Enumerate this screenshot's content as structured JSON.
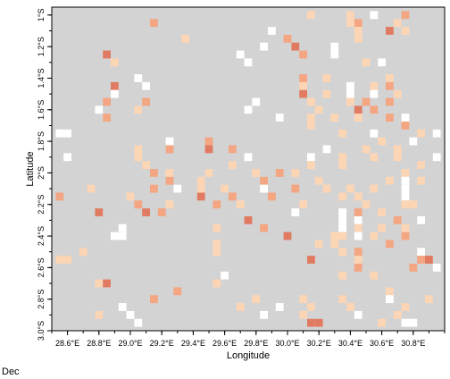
{
  "chart_data": {
    "type": "heatmap",
    "title": "",
    "xlabel": "Longitude",
    "ylabel": "Latitude",
    "annotation": "Dec",
    "xlim": [
      28.5,
      31.0
    ],
    "ylim": [
      -3.0,
      -0.95
    ],
    "x_ticks": [
      {
        "value": 28.6,
        "label": "28.6°E"
      },
      {
        "value": 28.8,
        "label": "28.8°E"
      },
      {
        "value": 29.0,
        "label": "29.0°E"
      },
      {
        "value": 29.2,
        "label": "29.2°E"
      },
      {
        "value": 29.4,
        "label": "29.4°E"
      },
      {
        "value": 29.6,
        "label": "29.6°E"
      },
      {
        "value": 29.8,
        "label": "29.8°E"
      },
      {
        "value": 30.0,
        "label": "30.0°E"
      },
      {
        "value": 30.2,
        "label": "30.2°E"
      },
      {
        "value": 30.4,
        "label": "30.4°E"
      },
      {
        "value": 30.6,
        "label": "30.6°E"
      },
      {
        "value": 30.8,
        "label": "30.8°E"
      }
    ],
    "y_ticks": [
      {
        "value": -1.0,
        "label": "1°S"
      },
      {
        "value": -1.2,
        "label": "1.2°S"
      },
      {
        "value": -1.4,
        "label": "1.4°S"
      },
      {
        "value": -1.6,
        "label": "1.6°S"
      },
      {
        "value": -1.8,
        "label": "1.8°S"
      },
      {
        "value": -2.0,
        "label": "2°S"
      },
      {
        "value": -2.2,
        "label": "2.2°S"
      },
      {
        "value": -2.4,
        "label": "2.4°S"
      },
      {
        "value": -2.6,
        "label": "2.6°S"
      },
      {
        "value": -2.8,
        "label": "2.8°S"
      },
      {
        "value": -3.0,
        "label": "3.0°S"
      }
    ],
    "grid": false,
    "legend": "none",
    "cell_size_deg": 0.05,
    "colors": {
      "background": "#d3d3d3",
      "level_1": "#ffffff",
      "level_2": "#fcd5b5",
      "level_3": "#f4a582",
      "level_4": "#e07b62"
    },
    "cells": [
      {
        "lon": 30.55,
        "lat": -1.0,
        "level": 1
      },
      {
        "lon": 30.4,
        "lat": -1.0,
        "level": 2
      },
      {
        "lon": 30.15,
        "lat": -1.0,
        "level": 2
      },
      {
        "lon": 30.75,
        "lat": -1.0,
        "level": 3
      },
      {
        "lon": 29.15,
        "lat": -1.05,
        "level": 3
      },
      {
        "lon": 30.45,
        "lat": -1.05,
        "level": 3
      },
      {
        "lon": 30.4,
        "lat": -1.05,
        "level": 2
      },
      {
        "lon": 30.7,
        "lat": -1.05,
        "level": 2
      },
      {
        "lon": 30.45,
        "lat": -1.1,
        "level": 2
      },
      {
        "lon": 30.65,
        "lat": -1.1,
        "level": 4
      },
      {
        "lon": 30.75,
        "lat": -1.1,
        "level": 2
      },
      {
        "lon": 29.9,
        "lat": -1.1,
        "level": 1
      },
      {
        "lon": 30.0,
        "lat": -1.15,
        "level": 3
      },
      {
        "lon": 30.45,
        "lat": -1.15,
        "level": 2
      },
      {
        "lon": 29.35,
        "lat": -1.15,
        "level": 2
      },
      {
        "lon": 30.05,
        "lat": -1.2,
        "level": 4
      },
      {
        "lon": 29.85,
        "lat": -1.2,
        "level": 1
      },
      {
        "lon": 30.3,
        "lat": -1.2,
        "level": 1
      },
      {
        "lon": 28.85,
        "lat": -1.25,
        "level": 4
      },
      {
        "lon": 29.7,
        "lat": -1.25,
        "level": 1
      },
      {
        "lon": 30.1,
        "lat": -1.25,
        "level": 3
      },
      {
        "lon": 30.3,
        "lat": -1.25,
        "level": 1
      },
      {
        "lon": 28.9,
        "lat": -1.3,
        "level": 2
      },
      {
        "lon": 29.75,
        "lat": -1.3,
        "level": 1
      },
      {
        "lon": 30.6,
        "lat": -1.3,
        "level": 1
      },
      {
        "lon": 30.5,
        "lat": -1.3,
        "level": 2
      },
      {
        "lon": 29.05,
        "lat": -1.4,
        "level": 1
      },
      {
        "lon": 30.1,
        "lat": -1.4,
        "level": 3
      },
      {
        "lon": 30.25,
        "lat": -1.4,
        "level": 2
      },
      {
        "lon": 30.65,
        "lat": -1.4,
        "level": 2
      },
      {
        "lon": 28.9,
        "lat": -1.45,
        "level": 4
      },
      {
        "lon": 29.1,
        "lat": -1.45,
        "level": 1
      },
      {
        "lon": 30.1,
        "lat": -1.45,
        "level": 2
      },
      {
        "lon": 30.4,
        "lat": -1.45,
        "level": 1
      },
      {
        "lon": 30.55,
        "lat": -1.45,
        "level": 2
      },
      {
        "lon": 30.65,
        "lat": -1.45,
        "level": 3
      },
      {
        "lon": 28.9,
        "lat": -1.5,
        "level": 1
      },
      {
        "lon": 30.1,
        "lat": -1.5,
        "level": 4
      },
      {
        "lon": 30.25,
        "lat": -1.5,
        "level": 2
      },
      {
        "lon": 30.4,
        "lat": -1.5,
        "level": 1
      },
      {
        "lon": 30.55,
        "lat": -1.5,
        "level": 1
      },
      {
        "lon": 30.7,
        "lat": -1.5,
        "level": 2
      },
      {
        "lon": 28.85,
        "lat": -1.55,
        "level": 3
      },
      {
        "lon": 29.1,
        "lat": -1.55,
        "level": 3
      },
      {
        "lon": 29.8,
        "lat": -1.55,
        "level": 1
      },
      {
        "lon": 30.15,
        "lat": -1.55,
        "level": 2
      },
      {
        "lon": 30.4,
        "lat": -1.55,
        "level": 2
      },
      {
        "lon": 30.5,
        "lat": -1.55,
        "level": 3
      },
      {
        "lon": 30.65,
        "lat": -1.55,
        "level": 3
      },
      {
        "lon": 28.8,
        "lat": -1.6,
        "level": 1
      },
      {
        "lon": 29.05,
        "lat": -1.6,
        "level": 2
      },
      {
        "lon": 29.75,
        "lat": -1.6,
        "level": 1
      },
      {
        "lon": 30.2,
        "lat": -1.6,
        "level": 2
      },
      {
        "lon": 30.45,
        "lat": -1.6,
        "level": 4
      },
      {
        "lon": 30.55,
        "lat": -1.6,
        "level": 3
      },
      {
        "lon": 28.85,
        "lat": -1.65,
        "level": 3
      },
      {
        "lon": 29.95,
        "lat": -1.65,
        "level": 1
      },
      {
        "lon": 30.15,
        "lat": -1.65,
        "level": 2
      },
      {
        "lon": 30.3,
        "lat": -1.65,
        "level": 2
      },
      {
        "lon": 30.45,
        "lat": -1.65,
        "level": 2
      },
      {
        "lon": 30.65,
        "lat": -1.65,
        "level": 3
      },
      {
        "lon": 30.75,
        "lat": -1.65,
        "level": 1
      },
      {
        "lon": 30.15,
        "lat": -1.7,
        "level": 2
      },
      {
        "lon": 30.75,
        "lat": -1.7,
        "level": 3
      },
      {
        "lon": 28.6,
        "lat": -1.75,
        "level": 1
      },
      {
        "lon": 28.55,
        "lat": -1.75,
        "level": 1
      },
      {
        "lon": 30.35,
        "lat": -1.75,
        "level": 2
      },
      {
        "lon": 30.55,
        "lat": -1.75,
        "level": 1
      },
      {
        "lon": 30.85,
        "lat": -1.75,
        "level": 2
      },
      {
        "lon": 30.95,
        "lat": -1.75,
        "level": 1
      },
      {
        "lon": 29.5,
        "lat": -1.8,
        "level": 3
      },
      {
        "lon": 29.25,
        "lat": -1.8,
        "level": 1
      },
      {
        "lon": 30.6,
        "lat": -1.8,
        "level": 2
      },
      {
        "lon": 30.8,
        "lat": -1.8,
        "level": 1
      },
      {
        "lon": 29.05,
        "lat": -1.85,
        "level": 2
      },
      {
        "lon": 29.25,
        "lat": -1.85,
        "level": 3
      },
      {
        "lon": 29.5,
        "lat": -1.85,
        "level": 4
      },
      {
        "lon": 29.65,
        "lat": -1.85,
        "level": 3
      },
      {
        "lon": 30.25,
        "lat": -1.85,
        "level": 1
      },
      {
        "lon": 30.5,
        "lat": -1.85,
        "level": 2
      },
      {
        "lon": 30.7,
        "lat": -1.85,
        "level": 2
      },
      {
        "lon": 28.6,
        "lat": -1.9,
        "level": 1
      },
      {
        "lon": 29.05,
        "lat": -1.9,
        "level": 2
      },
      {
        "lon": 29.75,
        "lat": -1.9,
        "level": 1
      },
      {
        "lon": 30.15,
        "lat": -1.9,
        "level": 1
      },
      {
        "lon": 30.35,
        "lat": -1.9,
        "level": 2
      },
      {
        "lon": 30.55,
        "lat": -1.9,
        "level": 2
      },
      {
        "lon": 30.7,
        "lat": -1.9,
        "level": 2
      },
      {
        "lon": 30.95,
        "lat": -1.9,
        "level": 1
      },
      {
        "lon": 29.1,
        "lat": -1.95,
        "level": 2
      },
      {
        "lon": 29.65,
        "lat": -1.95,
        "level": 2
      },
      {
        "lon": 30.15,
        "lat": -1.95,
        "level": 2
      },
      {
        "lon": 30.35,
        "lat": -1.95,
        "level": 2
      },
      {
        "lon": 30.85,
        "lat": -1.95,
        "level": 2
      },
      {
        "lon": 29.15,
        "lat": -2.0,
        "level": 3
      },
      {
        "lon": 29.25,
        "lat": -2.0,
        "level": 2
      },
      {
        "lon": 29.5,
        "lat": -2.0,
        "level": 2
      },
      {
        "lon": 29.8,
        "lat": -2.0,
        "level": 2
      },
      {
        "lon": 29.95,
        "lat": -2.0,
        "level": 3
      },
      {
        "lon": 30.05,
        "lat": -2.0,
        "level": 2
      },
      {
        "lon": 30.75,
        "lat": -2.0,
        "level": 2
      },
      {
        "lon": 29.25,
        "lat": -2.05,
        "level": 3
      },
      {
        "lon": 29.45,
        "lat": -2.05,
        "level": 2
      },
      {
        "lon": 29.85,
        "lat": -2.05,
        "level": 3
      },
      {
        "lon": 30.2,
        "lat": -2.05,
        "level": 2
      },
      {
        "lon": 30.65,
        "lat": -2.05,
        "level": 2
      },
      {
        "lon": 30.75,
        "lat": -2.05,
        "level": 1
      },
      {
        "lon": 30.85,
        "lat": -2.05,
        "level": 2
      },
      {
        "lon": 28.75,
        "lat": -2.1,
        "level": 2
      },
      {
        "lon": 29.15,
        "lat": -2.1,
        "level": 3
      },
      {
        "lon": 29.3,
        "lat": -2.1,
        "level": 1
      },
      {
        "lon": 29.45,
        "lat": -2.1,
        "level": 2
      },
      {
        "lon": 29.6,
        "lat": -2.1,
        "level": 2
      },
      {
        "lon": 29.85,
        "lat": -2.1,
        "level": 1
      },
      {
        "lon": 30.05,
        "lat": -2.1,
        "level": 3
      },
      {
        "lon": 30.25,
        "lat": -2.1,
        "level": 2
      },
      {
        "lon": 30.4,
        "lat": -2.1,
        "level": 2
      },
      {
        "lon": 30.55,
        "lat": -2.1,
        "level": 2
      },
      {
        "lon": 30.75,
        "lat": -2.1,
        "level": 1
      },
      {
        "lon": 28.55,
        "lat": -2.15,
        "level": 3
      },
      {
        "lon": 29.0,
        "lat": -2.15,
        "level": 2
      },
      {
        "lon": 29.45,
        "lat": -2.15,
        "level": 4
      },
      {
        "lon": 29.65,
        "lat": -2.15,
        "level": 3
      },
      {
        "lon": 29.9,
        "lat": -2.15,
        "level": 3
      },
      {
        "lon": 30.35,
        "lat": -2.15,
        "level": 2
      },
      {
        "lon": 30.45,
        "lat": -2.15,
        "level": 2
      },
      {
        "lon": 30.75,
        "lat": -2.15,
        "level": 1
      },
      {
        "lon": 29.05,
        "lat": -2.2,
        "level": 3
      },
      {
        "lon": 29.25,
        "lat": -2.2,
        "level": 2
      },
      {
        "lon": 29.55,
        "lat": -2.2,
        "level": 3
      },
      {
        "lon": 29.7,
        "lat": -2.2,
        "level": 2
      },
      {
        "lon": 30.1,
        "lat": -2.2,
        "level": 2
      },
      {
        "lon": 30.5,
        "lat": -2.2,
        "level": 2
      },
      {
        "lon": 30.75,
        "lat": -2.2,
        "level": 2
      },
      {
        "lon": 30.8,
        "lat": -2.2,
        "level": 2
      },
      {
        "lon": 28.8,
        "lat": -2.25,
        "level": 4
      },
      {
        "lon": 29.1,
        "lat": -2.25,
        "level": 4
      },
      {
        "lon": 29.2,
        "lat": -2.25,
        "level": 3
      },
      {
        "lon": 30.05,
        "lat": -2.25,
        "level": 1
      },
      {
        "lon": 30.35,
        "lat": -2.25,
        "level": 1
      },
      {
        "lon": 30.45,
        "lat": -2.25,
        "level": 3
      },
      {
        "lon": 30.6,
        "lat": -2.25,
        "level": 2
      },
      {
        "lon": 29.75,
        "lat": -2.3,
        "level": 4
      },
      {
        "lon": 30.35,
        "lat": -2.3,
        "level": 1
      },
      {
        "lon": 30.45,
        "lat": -2.3,
        "level": 1
      },
      {
        "lon": 30.7,
        "lat": -2.3,
        "level": 3
      },
      {
        "lon": 30.85,
        "lat": -2.3,
        "level": 1
      },
      {
        "lon": 28.95,
        "lat": -2.35,
        "level": 1
      },
      {
        "lon": 29.55,
        "lat": -2.35,
        "level": 2
      },
      {
        "lon": 29.85,
        "lat": -2.35,
        "level": 3
      },
      {
        "lon": 30.35,
        "lat": -2.35,
        "level": 1
      },
      {
        "lon": 30.45,
        "lat": -2.35,
        "level": 2
      },
      {
        "lon": 30.6,
        "lat": -2.35,
        "level": 2
      },
      {
        "lon": 30.75,
        "lat": -2.35,
        "level": 2
      },
      {
        "lon": 28.9,
        "lat": -2.4,
        "level": 1
      },
      {
        "lon": 28.95,
        "lat": -2.4,
        "level": 1
      },
      {
        "lon": 30.0,
        "lat": -2.4,
        "level": 4
      },
      {
        "lon": 30.3,
        "lat": -2.4,
        "level": 2
      },
      {
        "lon": 30.35,
        "lat": -2.4,
        "level": 2
      },
      {
        "lon": 30.45,
        "lat": -2.4,
        "level": 1
      },
      {
        "lon": 30.55,
        "lat": -2.4,
        "level": 2
      },
      {
        "lon": 30.75,
        "lat": -2.4,
        "level": 3
      },
      {
        "lon": 29.55,
        "lat": -2.45,
        "level": 2
      },
      {
        "lon": 30.2,
        "lat": -2.45,
        "level": 2
      },
      {
        "lon": 30.3,
        "lat": -2.45,
        "level": 2
      },
      {
        "lon": 30.65,
        "lat": -2.45,
        "level": 3
      },
      {
        "lon": 28.7,
        "lat": -2.5,
        "level": 2
      },
      {
        "lon": 29.55,
        "lat": -2.5,
        "level": 2
      },
      {
        "lon": 30.35,
        "lat": -2.5,
        "level": 2
      },
      {
        "lon": 30.45,
        "lat": -2.5,
        "level": 3
      },
      {
        "lon": 30.85,
        "lat": -2.5,
        "level": 1
      },
      {
        "lon": 28.55,
        "lat": -2.55,
        "level": 2
      },
      {
        "lon": 28.6,
        "lat": -2.55,
        "level": 2
      },
      {
        "lon": 30.15,
        "lat": -2.55,
        "level": 4
      },
      {
        "lon": 30.45,
        "lat": -2.55,
        "level": 2
      },
      {
        "lon": 30.85,
        "lat": -2.55,
        "level": 3
      },
      {
        "lon": 30.9,
        "lat": -2.55,
        "level": 4
      },
      {
        "lon": 30.45,
        "lat": -2.6,
        "level": 3
      },
      {
        "lon": 30.8,
        "lat": -2.6,
        "level": 3
      },
      {
        "lon": 30.95,
        "lat": -2.6,
        "level": 1
      },
      {
        "lon": 29.6,
        "lat": -2.65,
        "level": 1
      },
      {
        "lon": 30.35,
        "lat": -2.65,
        "level": 2
      },
      {
        "lon": 30.55,
        "lat": -2.65,
        "level": 2
      },
      {
        "lon": 28.8,
        "lat": -2.7,
        "level": 2
      },
      {
        "lon": 28.85,
        "lat": -2.7,
        "level": 4
      },
      {
        "lon": 29.55,
        "lat": -2.7,
        "level": 2
      },
      {
        "lon": 29.3,
        "lat": -2.75,
        "level": 3
      },
      {
        "lon": 30.65,
        "lat": -2.75,
        "level": 2
      },
      {
        "lon": 29.15,
        "lat": -2.8,
        "level": 3
      },
      {
        "lon": 29.8,
        "lat": -2.8,
        "level": 2
      },
      {
        "lon": 30.1,
        "lat": -2.8,
        "level": 2
      },
      {
        "lon": 30.35,
        "lat": -2.8,
        "level": 2
      },
      {
        "lon": 30.65,
        "lat": -2.8,
        "level": 1
      },
      {
        "lon": 30.9,
        "lat": -2.8,
        "level": 2
      },
      {
        "lon": 28.95,
        "lat": -2.85,
        "level": 1
      },
      {
        "lon": 29.7,
        "lat": -2.85,
        "level": 2
      },
      {
        "lon": 29.95,
        "lat": -2.85,
        "level": 1
      },
      {
        "lon": 30.15,
        "lat": -2.85,
        "level": 2
      },
      {
        "lon": 30.4,
        "lat": -2.85,
        "level": 2
      },
      {
        "lon": 30.75,
        "lat": -2.85,
        "level": 2
      },
      {
        "lon": 28.8,
        "lat": -2.9,
        "level": 2
      },
      {
        "lon": 29.0,
        "lat": -2.9,
        "level": 1
      },
      {
        "lon": 29.85,
        "lat": -2.9,
        "level": 1
      },
      {
        "lon": 30.1,
        "lat": -2.9,
        "level": 2
      },
      {
        "lon": 30.45,
        "lat": -2.9,
        "level": 1
      },
      {
        "lon": 30.7,
        "lat": -2.9,
        "level": 2
      },
      {
        "lon": 29.05,
        "lat": -2.95,
        "level": 1
      },
      {
        "lon": 30.15,
        "lat": -2.95,
        "level": 4
      },
      {
        "lon": 30.2,
        "lat": -2.95,
        "level": 4
      },
      {
        "lon": 30.6,
        "lat": -2.95,
        "level": 2
      },
      {
        "lon": 30.75,
        "lat": -2.95,
        "level": 1
      },
      {
        "lon": 30.8,
        "lat": -2.95,
        "level": 1
      }
    ]
  }
}
